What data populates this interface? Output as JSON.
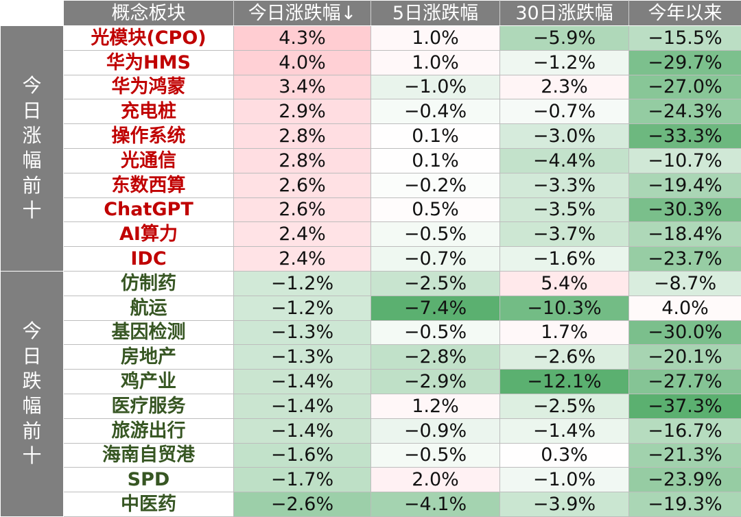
{
  "headers": [
    "概念板块",
    "今日涨跌幅↓",
    "5日涨跌幅",
    "30日涨跌幅",
    "今年以来"
  ],
  "groups": [
    {
      "label": "今日涨幅前十",
      "tone": "up"
    },
    {
      "label": "今日跌幅前十",
      "tone": "down"
    }
  ],
  "colors": {
    "header_bg": "#7f7f7f",
    "up_text": "#c00000",
    "down_text": "#375623"
  },
  "rows": [
    {
      "name": "光模块(CPO)",
      "group": 0,
      "values": [
        "4.3%",
        "1.0%",
        "−5.9%",
        "−15.5%"
      ],
      "nums": [
        4.3,
        1.0,
        -5.9,
        -15.5
      ]
    },
    {
      "name": "华为HMS",
      "group": 0,
      "values": [
        "4.0%",
        "1.0%",
        "−1.2%",
        "−29.7%"
      ],
      "nums": [
        4.0,
        1.0,
        -1.2,
        -29.7
      ]
    },
    {
      "name": "华为鸿蒙",
      "group": 0,
      "values": [
        "3.4%",
        "−1.0%",
        "2.3%",
        "−27.0%"
      ],
      "nums": [
        3.4,
        -1.0,
        2.3,
        -27.0
      ]
    },
    {
      "name": "充电桩",
      "group": 0,
      "values": [
        "2.9%",
        "−0.4%",
        "−0.7%",
        "−24.3%"
      ],
      "nums": [
        2.9,
        -0.4,
        -0.7,
        -24.3
      ]
    },
    {
      "name": "操作系统",
      "group": 0,
      "values": [
        "2.8%",
        "0.1%",
        "−3.0%",
        "−33.3%"
      ],
      "nums": [
        2.8,
        0.1,
        -3.0,
        -33.3
      ]
    },
    {
      "name": "光通信",
      "group": 0,
      "values": [
        "2.8%",
        "0.1%",
        "−4.4%",
        "−10.7%"
      ],
      "nums": [
        2.8,
        0.1,
        -4.4,
        -10.7
      ]
    },
    {
      "name": "东数西算",
      "group": 0,
      "values": [
        "2.6%",
        "−0.2%",
        "−3.3%",
        "−19.4%"
      ],
      "nums": [
        2.6,
        -0.2,
        -3.3,
        -19.4
      ]
    },
    {
      "name": "ChatGPT",
      "group": 0,
      "values": [
        "2.6%",
        "0.5%",
        "−3.5%",
        "−30.3%"
      ],
      "nums": [
        2.6,
        0.5,
        -3.5,
        -30.3
      ]
    },
    {
      "name": "AI算力",
      "group": 0,
      "values": [
        "2.4%",
        "−0.5%",
        "−3.7%",
        "−18.4%"
      ],
      "nums": [
        2.4,
        -0.5,
        -3.7,
        -18.4
      ]
    },
    {
      "name": "IDC",
      "group": 0,
      "values": [
        "2.4%",
        "−0.7%",
        "−1.6%",
        "−23.7%"
      ],
      "nums": [
        2.4,
        -0.7,
        -1.6,
        -23.7
      ]
    },
    {
      "name": "仿制药",
      "group": 1,
      "values": [
        "−1.2%",
        "−2.5%",
        "5.4%",
        "−8.7%"
      ],
      "nums": [
        -1.2,
        -2.5,
        5.4,
        -8.7
      ]
    },
    {
      "name": "航运",
      "group": 1,
      "values": [
        "−1.2%",
        "−7.4%",
        "−10.3%",
        "4.0%"
      ],
      "nums": [
        -1.2,
        -7.4,
        -10.3,
        4.0
      ]
    },
    {
      "name": "基因检测",
      "group": 1,
      "values": [
        "−1.3%",
        "−0.5%",
        "1.7%",
        "−30.0%"
      ],
      "nums": [
        -1.3,
        -0.5,
        1.7,
        -30.0
      ]
    },
    {
      "name": "房地产",
      "group": 1,
      "values": [
        "−1.3%",
        "−2.8%",
        "−2.6%",
        "−20.1%"
      ],
      "nums": [
        -1.3,
        -2.8,
        -2.6,
        -20.1
      ]
    },
    {
      "name": "鸡产业",
      "group": 1,
      "values": [
        "−1.4%",
        "−2.9%",
        "−12.1%",
        "−27.7%"
      ],
      "nums": [
        -1.4,
        -2.9,
        -12.1,
        -27.7
      ]
    },
    {
      "name": "医疗服务",
      "group": 1,
      "values": [
        "−1.4%",
        "1.2%",
        "−2.5%",
        "−37.3%"
      ],
      "nums": [
        -1.4,
        1.2,
        -2.5,
        -37.3
      ]
    },
    {
      "name": "旅游出行",
      "group": 1,
      "values": [
        "−1.4%",
        "−0.9%",
        "−1.4%",
        "−16.7%"
      ],
      "nums": [
        -1.4,
        -0.9,
        -1.4,
        -16.7
      ]
    },
    {
      "name": "海南自贸港",
      "group": 1,
      "values": [
        "−1.6%",
        "−0.5%",
        "0.3%",
        "−21.3%"
      ],
      "nums": [
        -1.6,
        -0.5,
        0.3,
        -21.3
      ]
    },
    {
      "name": "SPD",
      "group": 1,
      "values": [
        "−1.7%",
        "2.0%",
        "−1.0%",
        "−23.9%"
      ],
      "nums": [
        -1.7,
        2.0,
        -1.0,
        -23.9
      ]
    },
    {
      "name": "中医药",
      "group": 1,
      "values": [
        "−2.6%",
        "−4.1%",
        "−3.9%",
        "−19.3%"
      ],
      "nums": [
        -2.6,
        -4.1,
        -3.9,
        -19.3
      ]
    }
  ]
}
